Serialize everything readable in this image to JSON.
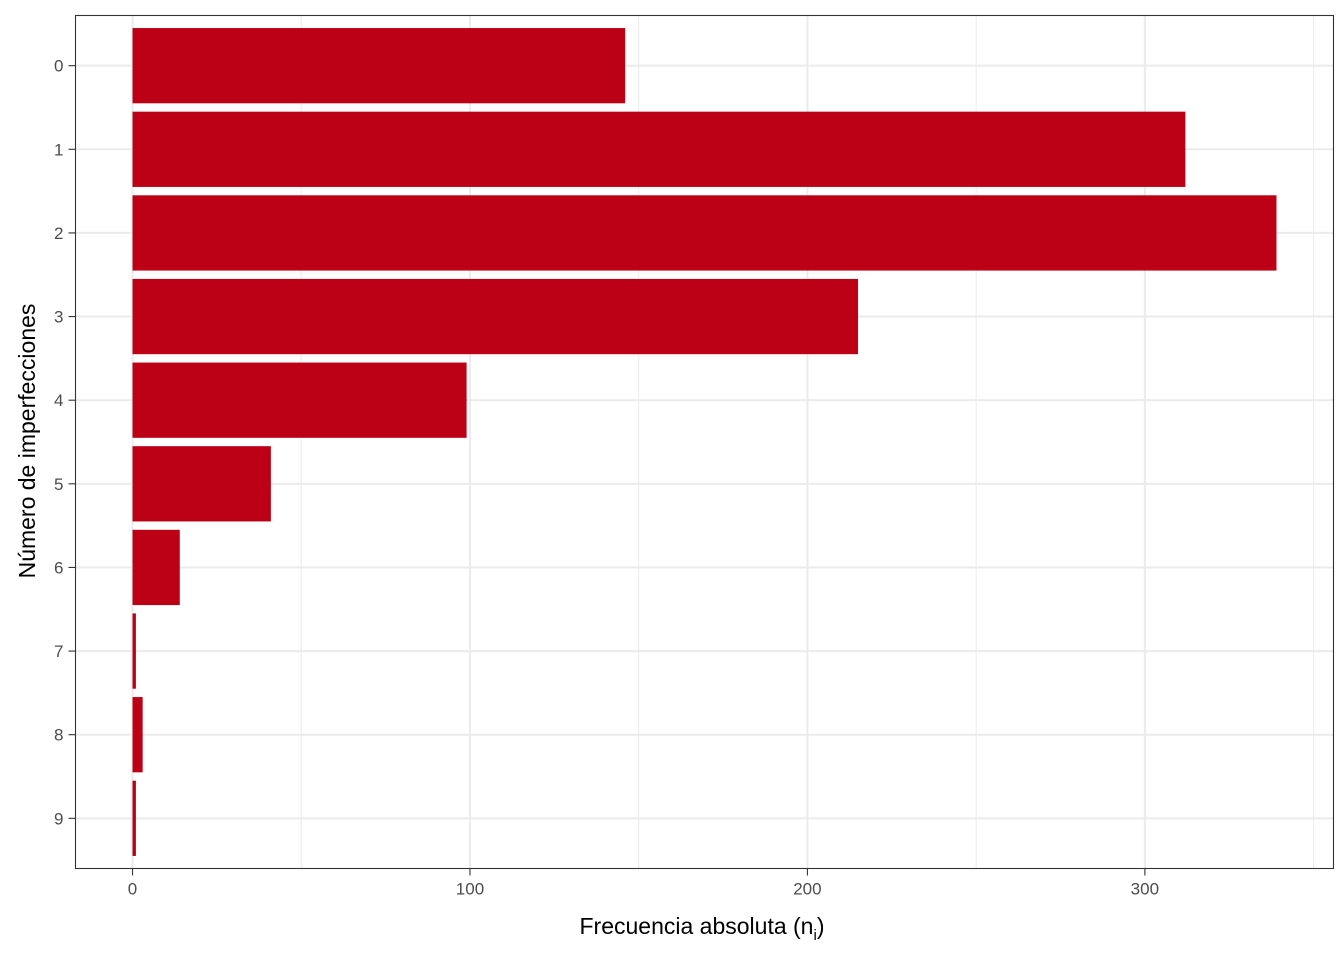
{
  "chart_data": {
    "type": "bar",
    "orientation": "horizontal",
    "categories": [
      "0",
      "1",
      "2",
      "3",
      "4",
      "5",
      "6",
      "7",
      "8",
      "9"
    ],
    "values": [
      146,
      312,
      339,
      215,
      99,
      41,
      14,
      1,
      3,
      1
    ],
    "xlabel": "Frecuencia absoluta (n",
    "xlabel_subscript": "i",
    "xlabel_suffix": ")",
    "ylabel": "Número de imperfecciones",
    "xlim": [
      -16.9,
      355.9
    ],
    "xticks": [
      0,
      100,
      200,
      300
    ],
    "grid": true,
    "bar_color": "#BC0016"
  }
}
